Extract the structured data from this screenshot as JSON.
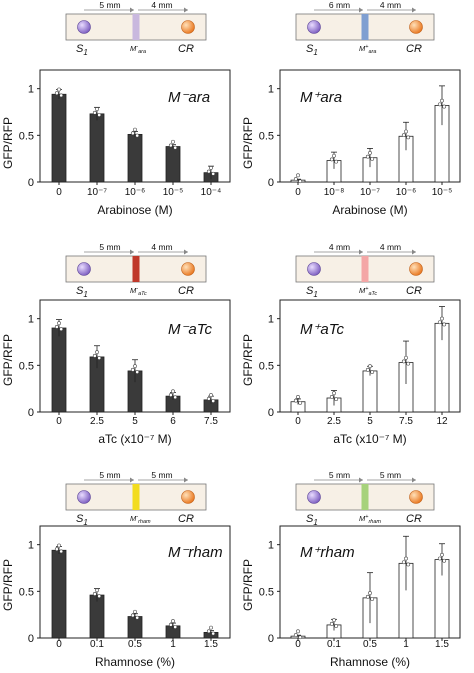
{
  "chart_data": [
    {
      "type": "bar",
      "title": "M⁻ara",
      "subtitle": "",
      "xlabel": "Arabinose (M)",
      "ylabel": "GFP/RFP",
      "categories": [
        "0",
        "10⁻⁷",
        "10⁻⁶",
        "10⁻⁵",
        "10⁻⁴"
      ],
      "values": [
        0.94,
        0.73,
        0.51,
        0.38,
        0.1
      ],
      "errors": [
        0.05,
        0.07,
        0.03,
        0.02,
        0.07
      ],
      "ylim": [
        0,
        1.2
      ],
      "yticks": [
        "0",
        "0.5",
        "1"
      ],
      "fill": "#3a3a3a",
      "inset": {
        "left_label": "5 mm",
        "right_label": "4 mm",
        "s_label": "S",
        "s_sub": "1",
        "m_main": "M",
        "m_sup": "-",
        "m_sub": "ara",
        "cr_label": "CR",
        "stripe_color": "#c9b8de"
      }
    },
    {
      "type": "bar",
      "title": "M⁺ara",
      "subtitle": "",
      "xlabel": "Arabinose (M)",
      "ylabel": "GFP/RFP",
      "categories": [
        "0",
        "10⁻⁸",
        "10⁻⁷",
        "10⁻⁶",
        "10⁻⁵"
      ],
      "values": [
        0.02,
        0.23,
        0.26,
        0.49,
        0.82
      ],
      "errors": [
        0.01,
        0.09,
        0.1,
        0.15,
        0.21
      ],
      "ylim": [
        0,
        1.2
      ],
      "yticks": [
        "0",
        "0.5",
        "1"
      ],
      "fill": "#ffffff",
      "inset": {
        "left_label": "6 mm",
        "right_label": "4 mm",
        "s_label": "S",
        "s_sub": "1",
        "m_main": "M",
        "m_sup": "+",
        "m_sub": "ara",
        "cr_label": "CR",
        "stripe_color": "#7f9fd1"
      }
    },
    {
      "type": "bar",
      "title": "M⁻aTc",
      "subtitle": "",
      "xlabel": "aTc (x10⁻⁷ M)",
      "ylabel": "GFP/RFP",
      "categories": [
        "0",
        "2.5",
        "5",
        "6",
        "7.5"
      ],
      "values": [
        0.9,
        0.59,
        0.44,
        0.17,
        0.13
      ],
      "errors": [
        0.09,
        0.12,
        0.12,
        0.04,
        0.04
      ],
      "ylim": [
        0,
        1.2
      ],
      "yticks": [
        "0",
        "0.5",
        "1"
      ],
      "fill": "#3a3a3a",
      "inset": {
        "left_label": "5 mm",
        "right_label": "4 mm",
        "s_label": "S",
        "s_sub": "1",
        "m_main": "M",
        "m_sup": "-",
        "m_sub": "aTc",
        "cr_label": "CR",
        "stripe_color": "#c0392b"
      }
    },
    {
      "type": "bar",
      "title": "M⁺aTc",
      "subtitle": "",
      "xlabel": "aTc (x10⁻⁷ M)",
      "ylabel": "GFP/RFP",
      "categories": [
        "0",
        "2.5",
        "5",
        "7.5",
        "12"
      ],
      "values": [
        0.11,
        0.15,
        0.44,
        0.53,
        0.95
      ],
      "errors": [
        0.03,
        0.08,
        0.05,
        0.23,
        0.18
      ],
      "ylim": [
        0,
        1.2
      ],
      "yticks": [
        "0",
        "0.5",
        "1"
      ],
      "fill": "#ffffff",
      "inset": {
        "left_label": "4 mm",
        "right_label": "4 mm",
        "s_label": "S",
        "s_sub": "1",
        "m_main": "M",
        "m_sup": "+",
        "m_sub": "aTc",
        "cr_label": "CR",
        "stripe_color": "#f4a6a6"
      }
    },
    {
      "type": "bar",
      "title": "M⁻rham",
      "subtitle": "",
      "xlabel": "Rhamnose (%)",
      "ylabel": "GFP/RFP",
      "categories": [
        "0",
        "0.1",
        "0.5",
        "1",
        "1.5"
      ],
      "values": [
        0.94,
        0.46,
        0.23,
        0.13,
        0.06
      ],
      "errors": [
        0.04,
        0.07,
        0.03,
        0.03,
        0.02
      ],
      "ylim": [
        0,
        1.2
      ],
      "yticks": [
        "0",
        "0.5",
        "1"
      ],
      "fill": "#3a3a3a",
      "inset": {
        "left_label": "5 mm",
        "right_label": "5 mm",
        "s_label": "S",
        "s_sub": "1",
        "m_main": "M",
        "m_sup": "-",
        "m_sub": "rham",
        "cr_label": "CR",
        "stripe_color": "#f2dc1f"
      }
    },
    {
      "type": "bar",
      "title": "M⁺rham",
      "subtitle": "",
      "xlabel": "Rhamnose (%)",
      "ylabel": "GFP/RFP",
      "categories": [
        "0",
        "0.1",
        "0.5",
        "1",
        "1.5"
      ],
      "values": [
        0.02,
        0.14,
        0.43,
        0.8,
        0.84
      ],
      "errors": [
        0.01,
        0.06,
        0.27,
        0.29,
        0.17
      ],
      "ylim": [
        0,
        1.2
      ],
      "yticks": [
        "0",
        "0.5",
        "1"
      ],
      "fill": "#ffffff",
      "inset": {
        "left_label": "5 mm",
        "right_label": "5 mm",
        "s_label": "S",
        "s_sub": "1",
        "m_main": "M",
        "m_sup": "+",
        "m_sub": "rham",
        "cr_label": "CR",
        "stripe_color": "#a6d27b"
      }
    }
  ],
  "legend_markers": {
    "s1_color": "#8e6fc9",
    "cr_color": "#f08a2b",
    "strip_color": "#f7f0e6"
  }
}
